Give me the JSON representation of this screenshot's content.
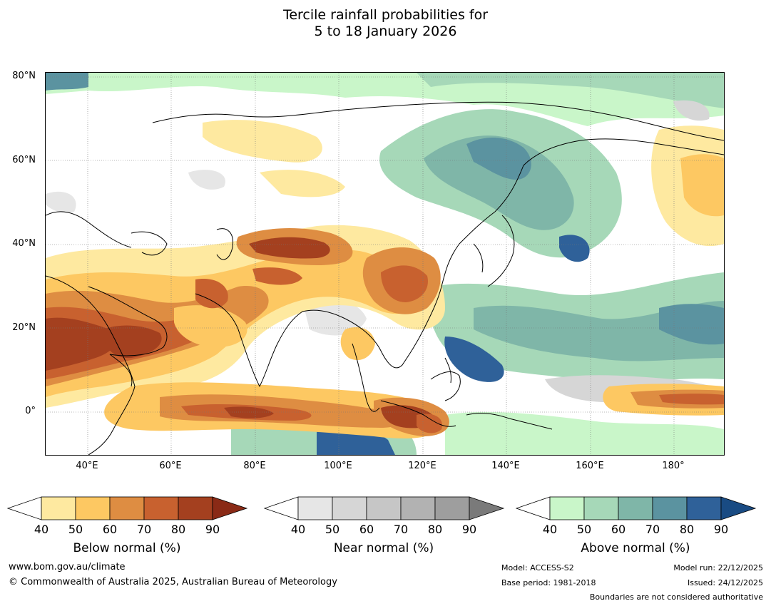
{
  "title_line1": "Tercile rainfall probabilities for",
  "title_line2": "5 to 18 January 2026",
  "axes": {
    "lat_labels": [
      "80°N",
      "60°N",
      "40°N",
      "20°N",
      "0°"
    ],
    "lon_labels": [
      "40°E",
      "60°E",
      "80°E",
      "100°E",
      "120°E",
      "140°E",
      "160°E",
      "180°"
    ]
  },
  "colorbars": [
    {
      "name": "Below normal (%)",
      "ticks": [
        "40",
        "50",
        "60",
        "70",
        "80",
        "90"
      ],
      "colors": [
        "#ffffff",
        "#fee9a0",
        "#fdc862",
        "#de8d42",
        "#c8612f",
        "#a4401f",
        "#8a2a16"
      ]
    },
    {
      "name": "Near normal (%)",
      "ticks": [
        "40",
        "50",
        "60",
        "70",
        "80",
        "90"
      ],
      "colors": [
        "#ffffff",
        "#e6e6e6",
        "#d6d6d6",
        "#c6c6c6",
        "#b2b2b2",
        "#9e9e9e",
        "#7a7a7a"
      ]
    },
    {
      "name": "Above normal (%)",
      "ticks": [
        "40",
        "50",
        "60",
        "70",
        "80",
        "90"
      ],
      "colors": [
        "#ffffff",
        "#c9f6c9",
        "#a6d8b8",
        "#7fb6a8",
        "#5b93a0",
        "#2f6199",
        "#194b83"
      ]
    }
  ],
  "footer": {
    "website": "www.bom.gov.au/climate",
    "copyright": "© Commonwealth of Australia 2025, Australian Bureau of Meteorology",
    "model": "Model: ACCESS-S2",
    "base_period": "Base period: 1981-2018",
    "model_run": "Model run: 22/12/2025",
    "issued": "Issued: 24/12/2025",
    "disclaimer": "Boundaries are not considered authoritative"
  }
}
